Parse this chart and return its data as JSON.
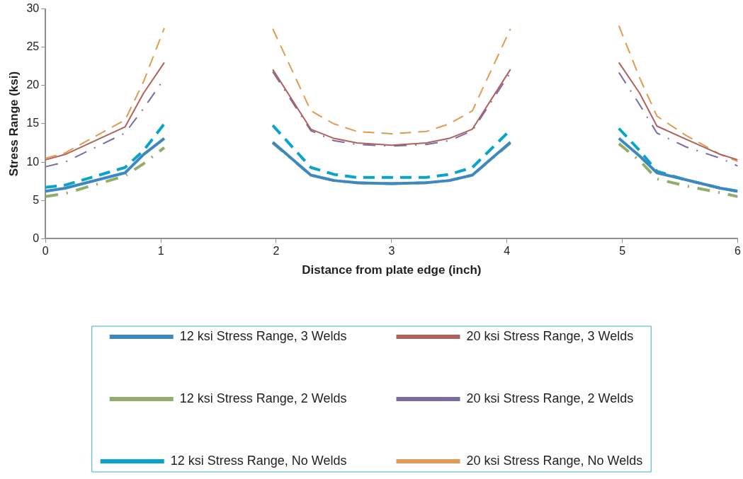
{
  "chart_data": {
    "type": "line",
    "xlabel": "Distance from plate edge (inch)",
    "ylabel": "Stress Range (ksi)",
    "x": [
      0,
      0.17,
      0.69,
      0.85,
      1.03,
      1.5,
      1.97,
      2.3,
      2.5,
      2.7,
      3,
      3.3,
      3.5,
      3.7,
      4.03,
      4.5,
      4.97,
      5.15,
      5.3,
      5.55,
      5.85,
      6
    ],
    "xlim": [
      0,
      6
    ],
    "xticks": [
      0,
      1,
      2,
      3,
      4,
      5,
      6
    ],
    "ylim": [
      0,
      30
    ],
    "yticks": [
      0,
      5,
      10,
      15,
      20,
      25,
      30
    ],
    "grid": false,
    "legend": "bottom",
    "marker": "none",
    "series": [
      {
        "name": "12 ksi Stress Range, 3 Welds",
        "color": "#3d88c0",
        "line_style": "solid",
        "values": [
          6.2,
          6.6,
          8.6,
          11,
          13.1,
          null,
          12.6,
          8.3,
          7.6,
          7.3,
          7.2,
          7.3,
          7.6,
          8.3,
          12.6,
          null,
          13.1,
          10.8,
          8.6,
          7.7,
          6.6,
          6.2
        ]
      },
      {
        "name": "20 ksi Stress Range, 3 Welds",
        "color": "#b0625a",
        "line_style": "solid",
        "values": [
          10.3,
          11,
          14.6,
          19,
          23,
          null,
          22.1,
          14.3,
          13.1,
          12.5,
          12.2,
          12.5,
          13.1,
          14.3,
          22.1,
          null,
          23,
          19,
          14.7,
          13,
          11,
          10.3
        ]
      },
      {
        "name": "12 ksi Stress Range, 2 Welds",
        "color": "#8fae6a",
        "line_style": "dotted",
        "values": [
          5.5,
          5.9,
          8.2,
          9.8,
          11.9,
          null,
          12.5,
          8.3,
          7.6,
          7.3,
          7.2,
          7.3,
          7.6,
          8.3,
          12.5,
          null,
          12.4,
          10.2,
          7.8,
          6.9,
          6,
          5.5
        ]
      },
      {
        "name": "20 ksi Stress Range, 2 Welds",
        "color": "#7a6aa6",
        "line_style": "dotted",
        "values": [
          9.4,
          10,
          13.8,
          17,
          20.9,
          null,
          21.8,
          14.1,
          12.8,
          12.3,
          12.1,
          12.3,
          12.8,
          14.1,
          21.7,
          null,
          21.7,
          17.5,
          13.8,
          12,
          10.5,
          9.5
        ]
      },
      {
        "name": "12 ksi Stress Range, No Welds",
        "color": "#08a5c8",
        "line_style": "dashed",
        "values": [
          6.7,
          7,
          9.3,
          11.5,
          15,
          null,
          14.8,
          9.3,
          8.4,
          8,
          8,
          8,
          8.4,
          9.3,
          14.2,
          null,
          14.4,
          11.5,
          8.8,
          7.7,
          6.6,
          6.2
        ]
      },
      {
        "name": "20 ksi Stress Range, No Welds",
        "color": "#e3994f",
        "line_style": "dashed",
        "values": [
          10.5,
          11.2,
          15.5,
          20.5,
          27.5,
          null,
          27.4,
          16.7,
          15,
          14,
          13.7,
          14,
          15,
          16.7,
          27.4,
          null,
          27.8,
          21,
          16,
          13.5,
          11,
          10.1
        ]
      }
    ]
  }
}
